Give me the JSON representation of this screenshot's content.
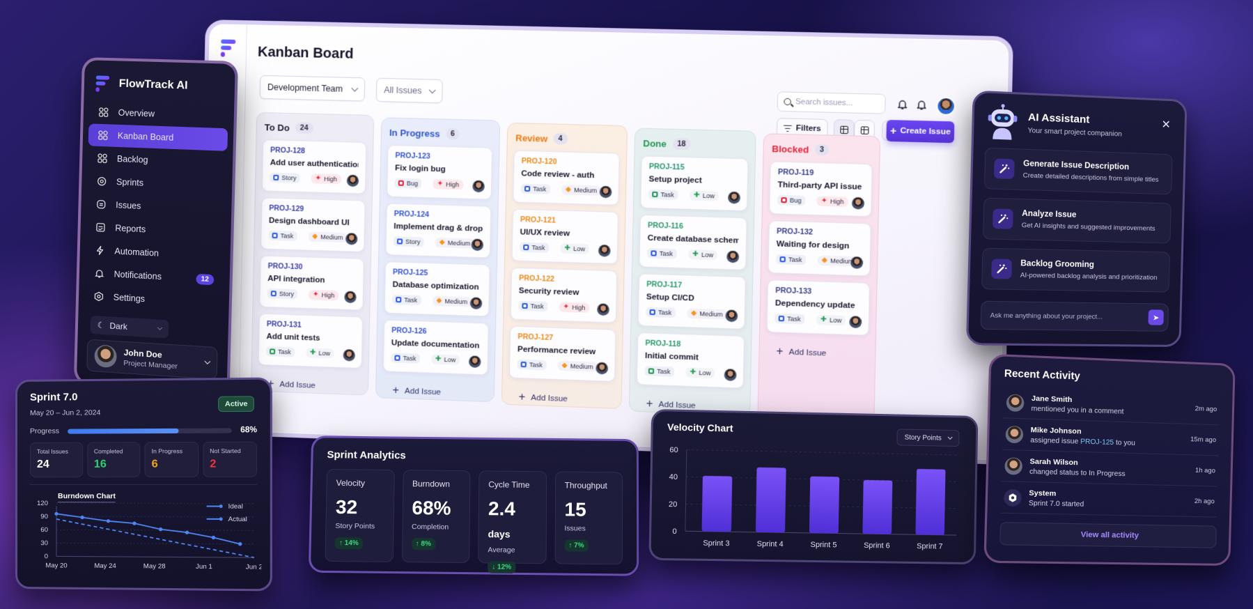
{
  "app": {
    "name": "FlowTrack AI",
    "page_title": "Kanban Board"
  },
  "sidebar": {
    "items": [
      {
        "label": "Overview",
        "icon": "grid-icon",
        "active": false
      },
      {
        "label": "Kanban Board",
        "icon": "grid-icon",
        "active": true
      },
      {
        "label": "Backlog",
        "icon": "grid-icon",
        "active": false
      },
      {
        "label": "Sprints",
        "icon": "sprint-cycle-icon",
        "active": false
      },
      {
        "label": "Issues",
        "icon": "issues-icon",
        "active": false
      },
      {
        "label": "Reports",
        "icon": "reports-icon",
        "active": false
      },
      {
        "label": "Automation",
        "icon": "lightning-icon",
        "active": false
      },
      {
        "label": "Notifications",
        "icon": "bell-icon",
        "active": false,
        "badge": "12"
      },
      {
        "label": "Settings",
        "icon": "gear-icon",
        "active": false
      }
    ],
    "theme_toggle": {
      "label": "Dark"
    },
    "user": {
      "name": "John Doe",
      "role": "Project Manager"
    }
  },
  "toolbar": {
    "team_select": "Development Team",
    "issue_filter": "All Issues",
    "search_placeholder": "Search issues...",
    "filters_label": "Filters",
    "create_label": "Create Issue"
  },
  "columns": [
    {
      "title": "To Do",
      "count": "24",
      "color": "#1d1c33",
      "id_color": "#3a3fa8",
      "cards": [
        {
          "id": "PROJ-128",
          "title": "Add user authentication",
          "type": "Story",
          "priority": "High"
        },
        {
          "id": "PROJ-129",
          "title": "Design dashboard UI",
          "type": "Task",
          "priority": "Medium"
        },
        {
          "id": "PROJ-130",
          "title": "API integration",
          "type": "Story",
          "priority": "High"
        },
        {
          "id": "PROJ-131",
          "title": "Add unit tests",
          "type": "Task",
          "priority": "Low"
        }
      ],
      "add_label": "Add Issue"
    },
    {
      "title": "In Progress",
      "count": "6",
      "color": "#2f55d4",
      "id_color": "#3454d1",
      "cards": [
        {
          "id": "PROJ-123",
          "title": "Fix login bug",
          "type": "Bug",
          "priority": "High"
        },
        {
          "id": "PROJ-124",
          "title": "Implement drag & drop",
          "type": "Story",
          "priority": "Medium"
        },
        {
          "id": "PROJ-125",
          "title": "Database optimization",
          "type": "Task",
          "priority": "Medium"
        },
        {
          "id": "PROJ-126",
          "title": "Update documentation",
          "type": "Task",
          "priority": "Low"
        }
      ],
      "add_label": "Add Issue"
    },
    {
      "title": "Review",
      "count": "4",
      "color": "#f07a12",
      "id_color": "#f08a1a",
      "cards": [
        {
          "id": "PROJ-120",
          "title": "Code review - auth",
          "type": "Task",
          "priority": "Medium"
        },
        {
          "id": "PROJ-121",
          "title": "UI/UX review",
          "type": "Task",
          "priority": "Low"
        },
        {
          "id": "PROJ-122",
          "title": "Security review",
          "type": "Task",
          "priority": "High"
        },
        {
          "id": "PROJ-127",
          "title": "Performance review",
          "type": "Task",
          "priority": "Medium"
        }
      ],
      "add_label": "Add Issue"
    },
    {
      "title": "Done",
      "count": "18",
      "color": "#1f9a52",
      "id_color": "#2a9a6a",
      "cards": [
        {
          "id": "PROJ-115",
          "title": "Setup project",
          "type": "Task",
          "priority": "Low"
        },
        {
          "id": "PROJ-116",
          "title": "Create database schema",
          "type": "Task",
          "priority": "Low"
        },
        {
          "id": "PROJ-117",
          "title": "Setup CI/CD",
          "type": "Task",
          "priority": "Medium"
        },
        {
          "id": "PROJ-118",
          "title": "Initial commit",
          "type": "Task",
          "priority": "Low"
        }
      ],
      "add_label": "Add Issue"
    },
    {
      "title": "Blocked",
      "count": "3",
      "color": "#e8243a",
      "id_color": "#3a3f8a",
      "cards": [
        {
          "id": "PROJ-119",
          "title": "Third-party API issue",
          "type": "Bug",
          "priority": "High"
        },
        {
          "id": "PROJ-132",
          "title": "Waiting for design",
          "type": "Task",
          "priority": "Medium"
        },
        {
          "id": "PROJ-133",
          "title": "Dependency update",
          "type": "Task",
          "priority": "Low"
        }
      ],
      "add_label": "Add Issue"
    }
  ],
  "sprint": {
    "title": "Sprint 7.0",
    "dates": "May 20 – Jun 2, 2024",
    "status": "Active",
    "progress_label": "Progress",
    "progress_pct": "68%",
    "progress_value": 68,
    "stats": [
      {
        "label": "Total Issues",
        "value": "24",
        "color": "#ffffff"
      },
      {
        "label": "Completed",
        "value": "16",
        "color": "#2fd06e"
      },
      {
        "label": "In Progress",
        "value": "6",
        "color": "#f5a524"
      },
      {
        "label": "Not Started",
        "value": "2",
        "color": "#f0353f"
      }
    ]
  },
  "analytics": {
    "title": "Sprint Analytics",
    "cards": [
      {
        "label": "Velocity",
        "value": "32",
        "unit": "",
        "sub": "Story Points",
        "delta": "↑ 14%"
      },
      {
        "label": "Burndown",
        "value": "68%",
        "unit": "",
        "sub": "Completion",
        "delta": "↑ 8%"
      },
      {
        "label": "Cycle Time",
        "value": "2.4",
        "unit": "days",
        "sub": "Average",
        "delta": "↓ 12%"
      },
      {
        "label": "Throughput",
        "value": "15",
        "unit": "",
        "sub": "Issues",
        "delta": "↑ 7%"
      }
    ]
  },
  "velocity": {
    "title": "Velocity Chart",
    "metric_select": "Story Points"
  },
  "ai_assistant": {
    "title": "AI Assistant",
    "subtitle": "Your smart project companion",
    "actions": [
      {
        "title": "Generate Issue Description",
        "desc": "Create detailed descriptions from simple titles"
      },
      {
        "title": "Analyze Issue",
        "desc": "Get AI insights and suggested improvements"
      },
      {
        "title": "Backlog Grooming",
        "desc": "AI-powered backlog analysis and prioritization"
      }
    ],
    "input_placeholder": "Ask me anything about your project..."
  },
  "activity": {
    "title": "Recent Activity",
    "items": [
      {
        "name": "Jane Smith",
        "text": "mentioned you in a comment",
        "time": "2m ago"
      },
      {
        "name": "Mike Johnson",
        "text_before": "assigned issue ",
        "link": "PROJ-125",
        "text_after": " to you",
        "time": "15m ago"
      },
      {
        "name": "Sarah Wilson",
        "text": "changed status to In Progress",
        "time": "1h ago"
      },
      {
        "name": "System",
        "text": "Sprint 7.0 started",
        "time": "2h ago",
        "system": true
      }
    ],
    "view_all": "View all activity"
  },
  "chart_data": [
    {
      "type": "line",
      "title": "Burndown Chart",
      "xlabel": "",
      "ylabel": "",
      "categories": [
        "May 20",
        "May 24",
        "May 28",
        "Jun 1",
        "Jun 2"
      ],
      "x": [
        "May 20",
        "May 22",
        "May 24",
        "May 26",
        "May 28",
        "May 30",
        "Jun 1",
        "Jun 2"
      ],
      "series": [
        {
          "name": "Ideal",
          "style": "dashed",
          "values": [
            84,
            72,
            60,
            48,
            36,
            24,
            12,
            0
          ]
        },
        {
          "name": "Actual",
          "style": "solid",
          "values": [
            96,
            88,
            80,
            75,
            62,
            55,
            44,
            30
          ]
        }
      ],
      "yticks": [
        0,
        30,
        60,
        90,
        120
      ],
      "ylim": [
        0,
        120
      ],
      "grid": true,
      "legend_position": "top-right"
    },
    {
      "type": "bar",
      "title": "Velocity Chart",
      "xlabel": "",
      "ylabel": "Story Points",
      "categories": [
        "Sprint 3",
        "Sprint 4",
        "Sprint 5",
        "Sprint 6",
        "Sprint 7"
      ],
      "values": [
        41,
        48,
        42,
        40,
        49
      ],
      "yticks": [
        0,
        20,
        40,
        60
      ],
      "ylim": [
        0,
        60
      ],
      "grid": true,
      "color": "#6b46f0"
    }
  ]
}
